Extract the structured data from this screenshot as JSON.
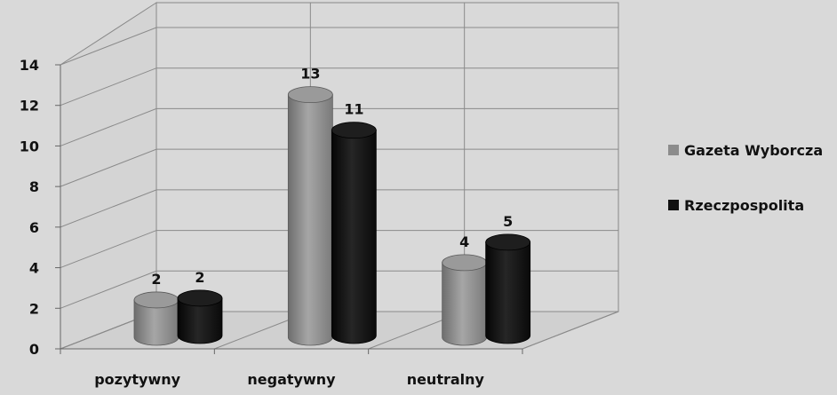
{
  "chart_data": {
    "type": "bar",
    "categories": [
      "pozytywny",
      "negatywny",
      "neutralny"
    ],
    "series": [
      {
        "name": "Gazeta Wyborcza",
        "values": [
          2,
          13,
          4
        ],
        "color": "#8c8c8c"
      },
      {
        "name": "Rzeczpospolita",
        "values": [
          2,
          11,
          5
        ],
        "color": "#111111"
      }
    ],
    "yticks": [
      0,
      2,
      4,
      6,
      8,
      10,
      12,
      14
    ],
    "ylim": [
      0,
      14
    ],
    "grid": true,
    "legend_position": "right",
    "style": "3d-cylinder"
  }
}
